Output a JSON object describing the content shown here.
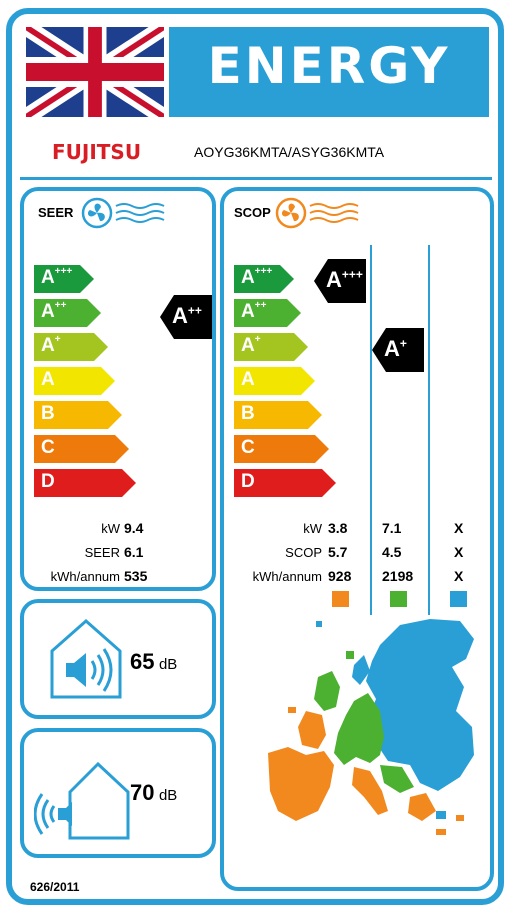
{
  "header": {
    "energy_title": "ENERGY",
    "brand": "FUJITSU",
    "model": "AOYG36KMTA/ASYG36KMTA"
  },
  "colors": {
    "frame": "#2a9fd6",
    "a3": "#1a9a3c",
    "a2": "#4cb030",
    "a1": "#a4c520",
    "a": "#f2e600",
    "b": "#f6b800",
    "c": "#ee7a0c",
    "d": "#e01d1d",
    "warm": "#f2891e",
    "average": "#4cb030",
    "cold": "#2a9fd6"
  },
  "seer": {
    "title": "SEER",
    "scale": [
      "A+++",
      "A++",
      "A+",
      "A",
      "B",
      "C",
      "D"
    ],
    "rating": "A++",
    "rows": [
      {
        "label": "kW",
        "value": "9.4"
      },
      {
        "label": "SEER",
        "value": "6.1"
      },
      {
        "label": "kWh/annum",
        "value": "535"
      }
    ]
  },
  "scop": {
    "title": "SCOP",
    "scale": [
      "A+++",
      "A++",
      "A+",
      "A",
      "B",
      "C",
      "D"
    ],
    "ratings": [
      {
        "zone": "warm",
        "rating": "A+++"
      },
      {
        "zone": "average",
        "rating": "A+"
      }
    ],
    "rows": [
      {
        "label": "kW",
        "warm": "3.8",
        "average": "7.1",
        "cold": "X"
      },
      {
        "label": "SCOP",
        "warm": "5.7",
        "average": "4.5",
        "cold": "X"
      },
      {
        "label": "kWh/annum",
        "warm": "928",
        "average": "2198",
        "cold": "X"
      }
    ]
  },
  "noise": {
    "indoor_value": "65",
    "outdoor_value": "70",
    "unit": "dB"
  },
  "regulation": "626/2011"
}
